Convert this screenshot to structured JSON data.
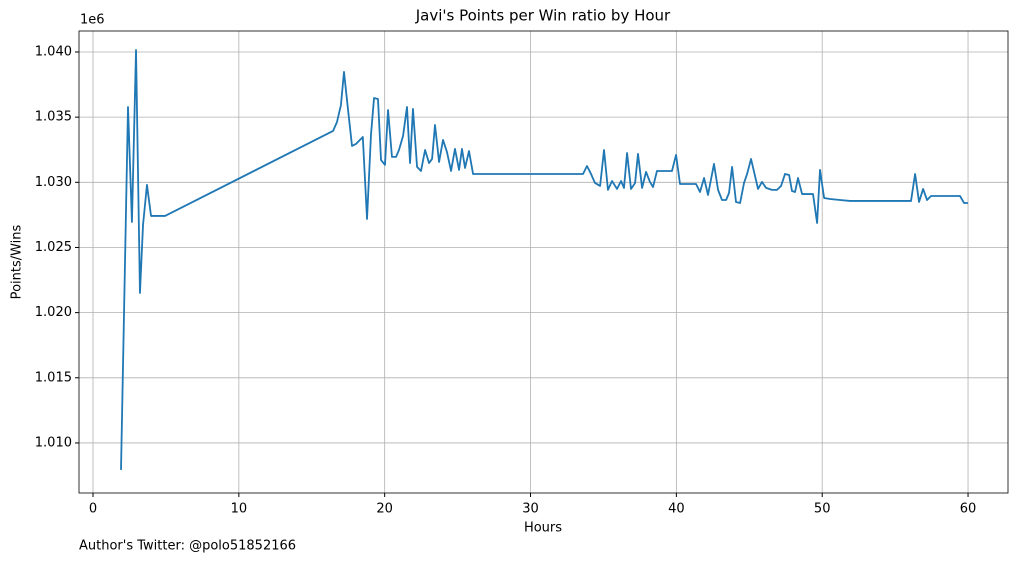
{
  "chart_data": {
    "type": "line",
    "title": "Javi's Points per Win ratio by Hour",
    "x_label": "Hours",
    "y_label": "Points/Wins",
    "y_offset_label": "1e6",
    "annotation": "Author's Twitter: @polo51852166",
    "color": "#1f77b4",
    "grid": true,
    "xlim": [
      -0.96,
      62.74
    ],
    "ylim": [
      1.00616,
      1.04161
    ],
    "xticks": [
      0,
      10,
      20,
      30,
      40,
      50,
      60
    ],
    "yticks": [
      {
        "value": 1.01,
        "label": "1.010"
      },
      {
        "value": 1.015,
        "label": "1.015"
      },
      {
        "value": 1.02,
        "label": "1.020"
      },
      {
        "value": 1.025,
        "label": "1.025"
      },
      {
        "value": 1.03,
        "label": "1.030"
      },
      {
        "value": 1.035,
        "label": "1.035"
      },
      {
        "value": 1.04,
        "label": "1.040"
      }
    ],
    "x": [
      1.92,
      2.4,
      2.67,
      2.95,
      3.22,
      3.43,
      3.7,
      3.98,
      4.94,
      16.46,
      16.73,
      17.0,
      17.21,
      17.49,
      17.76,
      18.03,
      18.5,
      18.79,
      19.06,
      19.27,
      19.54,
      19.75,
      20.02,
      20.23,
      20.5,
      20.78,
      20.98,
      21.26,
      21.53,
      21.74,
      21.94,
      22.22,
      22.49,
      22.77,
      23.04,
      23.25,
      23.45,
      23.73,
      24.0,
      24.27,
      24.55,
      24.82,
      25.1,
      25.3,
      25.51,
      25.78,
      26.06,
      33.6,
      33.87,
      34.15,
      34.42,
      34.77,
      35.04,
      35.31,
      35.59,
      35.93,
      36.21,
      36.41,
      36.62,
      36.89,
      37.17,
      37.37,
      37.65,
      37.92,
      38.19,
      38.4,
      38.67,
      39.7,
      39.98,
      40.25,
      41.35,
      41.62,
      41.9,
      42.17,
      42.58,
      42.86,
      43.13,
      43.41,
      43.61,
      43.82,
      44.09,
      44.37,
      44.64,
      44.85,
      45.12,
      45.33,
      45.6,
      45.87,
      46.15,
      46.56,
      46.9,
      47.18,
      47.45,
      47.73,
      47.93,
      48.14,
      48.34,
      48.62,
      49.37,
      49.65,
      49.85,
      50.13,
      50.54,
      51.22,
      51.91,
      56.09,
      56.37,
      56.64,
      56.92,
      57.19,
      57.46,
      59.45,
      59.73,
      60.0
    ],
    "values": [
      1.00793,
      1.03578,
      1.02696,
      1.04015,
      1.02151,
      1.02673,
      1.0298,
      1.02742,
      1.02742,
      1.03394,
      1.03463,
      1.03593,
      1.03847,
      1.03555,
      1.03279,
      1.03294,
      1.03348,
      1.02719,
      1.03363,
      1.03647,
      1.03639,
      1.03171,
      1.03133,
      1.03555,
      1.03195,
      1.03195,
      1.03248,
      1.03356,
      1.03578,
      1.03148,
      1.03563,
      1.03118,
      1.03087,
      1.03248,
      1.03148,
      1.03179,
      1.0344,
      1.03156,
      1.03325,
      1.03233,
      1.03087,
      1.03256,
      1.03095,
      1.03256,
      1.0311,
      1.0324,
      1.03064,
      1.03064,
      1.03125,
      1.03064,
      1.02995,
      1.02972,
      1.03248,
      1.02942,
      1.0301,
      1.02949,
      1.0301,
      1.02957,
      1.03225,
      1.02949,
      1.02995,
      1.03218,
      1.02957,
      1.0308,
      1.03003,
      1.02964,
      1.03087,
      1.03087,
      1.0321,
      1.02987,
      1.02987,
      1.02926,
      1.03033,
      1.02903,
      1.03141,
      1.02942,
      1.02864,
      1.02864,
      1.02918,
      1.03118,
      1.02849,
      1.02841,
      1.02995,
      1.03064,
      1.03179,
      1.03079,
      1.02949,
      1.03003,
      1.02957,
      1.02942,
      1.02942,
      1.02972,
      1.03064,
      1.03056,
      1.02933,
      1.02926,
      1.03033,
      1.0291,
      1.0291,
      1.02688,
      1.03095,
      1.0288,
      1.02872,
      1.02864,
      1.02857,
      1.02857,
      1.03064,
      1.02849,
      1.02949,
      1.02864,
      1.02895,
      1.02895,
      1.02841,
      1.02841
    ]
  }
}
